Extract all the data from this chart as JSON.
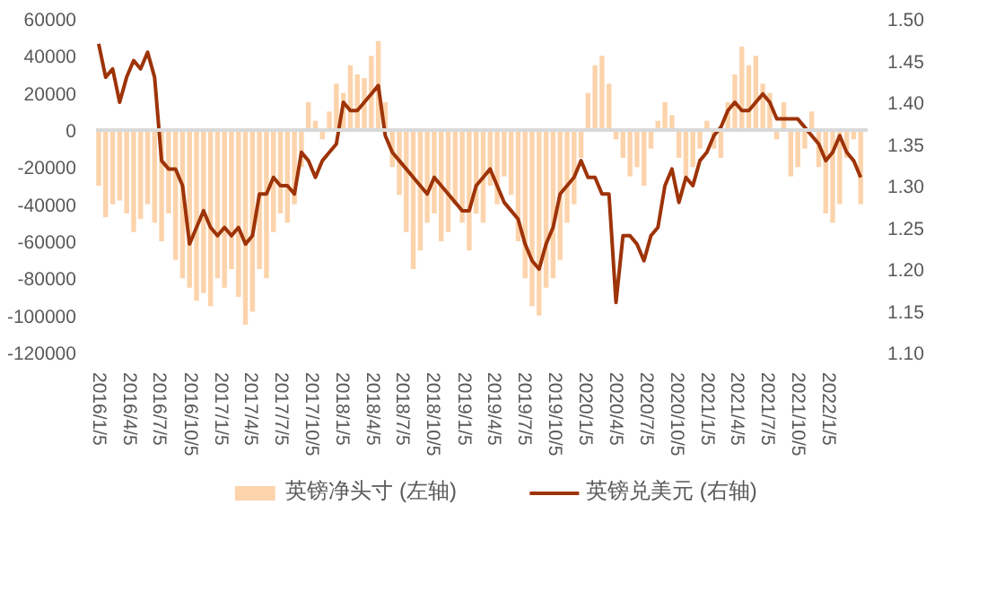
{
  "chart_data": {
    "type": "bar",
    "x": [
      "2016-01-05",
      "2016-01-26",
      "2016-02-16",
      "2016-03-08",
      "2016-03-29",
      "2016-04-19",
      "2016-05-10",
      "2016-05-31",
      "2016-06-21",
      "2016-07-12",
      "2016-08-02",
      "2016-08-23",
      "2016-09-13",
      "2016-10-04",
      "2016-10-25",
      "2016-11-15",
      "2016-12-06",
      "2016-12-27",
      "2017-01-17",
      "2017-02-07",
      "2017-02-28",
      "2017-03-21",
      "2017-04-11",
      "2017-05-02",
      "2017-05-23",
      "2017-06-13",
      "2017-07-04",
      "2017-07-25",
      "2017-08-15",
      "2017-09-05",
      "2017-09-26",
      "2017-10-17",
      "2017-11-07",
      "2017-11-28",
      "2017-12-19",
      "2018-01-09",
      "2018-01-30",
      "2018-02-20",
      "2018-03-13",
      "2018-04-03",
      "2018-04-24",
      "2018-05-15",
      "2018-06-05",
      "2018-06-26",
      "2018-07-17",
      "2018-08-07",
      "2018-08-28",
      "2018-09-18",
      "2018-10-09",
      "2018-10-30",
      "2018-11-20",
      "2018-12-11",
      "2019-01-01",
      "2019-01-22",
      "2019-02-12",
      "2019-03-05",
      "2019-03-26",
      "2019-04-16",
      "2019-05-07",
      "2019-05-28",
      "2019-06-18",
      "2019-07-09",
      "2019-07-30",
      "2019-08-20",
      "2019-09-10",
      "2019-10-01",
      "2019-10-22",
      "2019-11-12",
      "2019-12-03",
      "2019-12-24",
      "2020-01-14",
      "2020-02-04",
      "2020-02-25",
      "2020-03-17",
      "2020-04-07",
      "2020-04-28",
      "2020-05-19",
      "2020-06-09",
      "2020-06-30",
      "2020-07-21",
      "2020-08-11",
      "2020-09-01",
      "2020-09-22",
      "2020-10-13",
      "2020-11-03",
      "2020-11-24",
      "2020-12-15",
      "2021-01-05",
      "2021-01-26",
      "2021-02-16",
      "2021-03-09",
      "2021-03-30",
      "2021-04-20",
      "2021-05-11",
      "2021-06-01",
      "2021-06-22",
      "2021-07-13",
      "2021-08-03",
      "2021-08-24",
      "2021-09-14",
      "2021-10-05",
      "2021-10-26",
      "2021-11-16",
      "2021-12-07",
      "2021-12-28",
      "2022-01-18",
      "2022-02-08",
      "2022-03-01",
      "2022-03-22",
      "2022-04-12"
    ],
    "series": [
      {
        "name": "英镑净头寸 (左轴)",
        "color": "#fbcb9c",
        "values": [
          -30000,
          -47000,
          -40000,
          -38000,
          -45000,
          -55000,
          -48000,
          -40000,
          -50000,
          -60000,
          -45000,
          -70000,
          -80000,
          -85000,
          -92000,
          -88000,
          -95000,
          -80000,
          -85000,
          -75000,
          -90000,
          -105000,
          -98000,
          -75000,
          -80000,
          -55000,
          -45000,
          -50000,
          -40000,
          -20000,
          15000,
          5000,
          -5000,
          10000,
          25000,
          20000,
          35000,
          30000,
          28000,
          40000,
          48000,
          15000,
          -20000,
          -35000,
          -55000,
          -75000,
          -65000,
          -50000,
          -45000,
          -60000,
          -55000,
          -40000,
          -50000,
          -65000,
          -45000,
          -50000,
          -30000,
          -40000,
          -25000,
          -35000,
          -60000,
          -80000,
          -95000,
          -100000,
          -85000,
          -80000,
          -70000,
          -50000,
          -40000,
          -15000,
          20000,
          35000,
          40000,
          25000,
          -5000,
          -15000,
          -25000,
          -20000,
          -30000,
          -10000,
          5000,
          15000,
          8000,
          -15000,
          -25000,
          -20000,
          -10000,
          5000,
          -10000,
          -15000,
          15000,
          30000,
          45000,
          35000,
          40000,
          25000,
          20000,
          -5000,
          15000,
          -25000,
          -20000,
          -10000,
          10000,
          -20000,
          -45000,
          -50000,
          -40000,
          -15000,
          -5000,
          -40000
        ]
      },
      {
        "name": "英镑兑美元 (右轴)",
        "type": "line",
        "axis": "y2",
        "color": "#9e3308",
        "values": [
          1.47,
          1.43,
          1.44,
          1.4,
          1.43,
          1.45,
          1.44,
          1.46,
          1.43,
          1.33,
          1.32,
          1.32,
          1.3,
          1.23,
          1.25,
          1.27,
          1.25,
          1.24,
          1.25,
          1.24,
          1.25,
          1.23,
          1.24,
          1.29,
          1.29,
          1.31,
          1.3,
          1.3,
          1.29,
          1.34,
          1.33,
          1.31,
          1.33,
          1.34,
          1.35,
          1.4,
          1.39,
          1.39,
          1.4,
          1.41,
          1.42,
          1.36,
          1.34,
          1.33,
          1.32,
          1.31,
          1.3,
          1.29,
          1.31,
          1.3,
          1.29,
          1.28,
          1.27,
          1.27,
          1.3,
          1.31,
          1.32,
          1.3,
          1.28,
          1.27,
          1.26,
          1.23,
          1.21,
          1.2,
          1.23,
          1.25,
          1.29,
          1.3,
          1.31,
          1.33,
          1.31,
          1.31,
          1.29,
          1.29,
          1.16,
          1.24,
          1.24,
          1.23,
          1.21,
          1.24,
          1.25,
          1.3,
          1.32,
          1.28,
          1.31,
          1.3,
          1.33,
          1.34,
          1.36,
          1.37,
          1.39,
          1.4,
          1.39,
          1.39,
          1.4,
          1.41,
          1.4,
          1.38,
          1.38,
          1.38,
          1.38,
          1.37,
          1.36,
          1.35,
          1.33,
          1.34,
          1.36,
          1.34,
          1.33,
          1.31
        ]
      }
    ],
    "ylim": [
      -120000,
      60000
    ],
    "yticks": [
      -120000,
      -100000,
      -80000,
      -60000,
      -40000,
      -20000,
      0,
      20000,
      40000,
      60000
    ],
    "y2lim": [
      1.1,
      1.5
    ],
    "y2ticks": [
      {
        "value": 1.1,
        "label": "1.10"
      },
      {
        "value": 1.15,
        "label": "1.15"
      },
      {
        "value": 1.2,
        "label": "1.20"
      },
      {
        "value": 1.25,
        "label": "1.25"
      },
      {
        "value": 1.3,
        "label": "1.30"
      },
      {
        "value": 1.35,
        "label": "1.35"
      },
      {
        "value": 1.4,
        "label": "1.40"
      },
      {
        "value": 1.45,
        "label": "1.45"
      },
      {
        "value": 1.5,
        "label": "1.50"
      }
    ],
    "xlim": [
      "2015-12-28",
      "2022-05-03"
    ],
    "xticks": [
      {
        "value": "2016-01-05",
        "label": "2016/1/5"
      },
      {
        "value": "2016-04-05",
        "label": "2016/4/5"
      },
      {
        "value": "2016-07-05",
        "label": "2016/7/5"
      },
      {
        "value": "2016-10-05",
        "label": "2016/10/5"
      },
      {
        "value": "2017-01-05",
        "label": "2017/1/5"
      },
      {
        "value": "2017-04-05",
        "label": "2017/4/5"
      },
      {
        "value": "2017-07-05",
        "label": "2017/7/5"
      },
      {
        "value": "2017-10-05",
        "label": "2017/10/5"
      },
      {
        "value": "2018-01-05",
        "label": "2018/1/5"
      },
      {
        "value": "2018-04-05",
        "label": "2018/4/5"
      },
      {
        "value": "2018-07-05",
        "label": "2018/7/5"
      },
      {
        "value": "2018-10-05",
        "label": "2018/10/5"
      },
      {
        "value": "2019-01-05",
        "label": "2019/1/5"
      },
      {
        "value": "2019-04-05",
        "label": "2019/4/5"
      },
      {
        "value": "2019-07-05",
        "label": "2019/7/5"
      },
      {
        "value": "2019-10-05",
        "label": "2019/10/5"
      },
      {
        "value": "2020-01-05",
        "label": "2020/1/5"
      },
      {
        "value": "2020-04-05",
        "label": "2020/4/5"
      },
      {
        "value": "2020-07-05",
        "label": "2020/7/5"
      },
      {
        "value": "2020-10-05",
        "label": "2020/10/5"
      },
      {
        "value": "2021-01-05",
        "label": "2021/1/5"
      },
      {
        "value": "2021-04-05",
        "label": "2021/4/5"
      },
      {
        "value": "2021-07-05",
        "label": "2021/7/5"
      },
      {
        "value": "2021-10-05",
        "label": "2021/10/5"
      },
      {
        "value": "2022-01-05",
        "label": "2022/1/5"
      }
    ],
    "ref_lines": [
      {
        "axis": "y",
        "value": 0,
        "color": "#d9d9d9"
      }
    ],
    "grid": false,
    "legend": "bottom"
  }
}
